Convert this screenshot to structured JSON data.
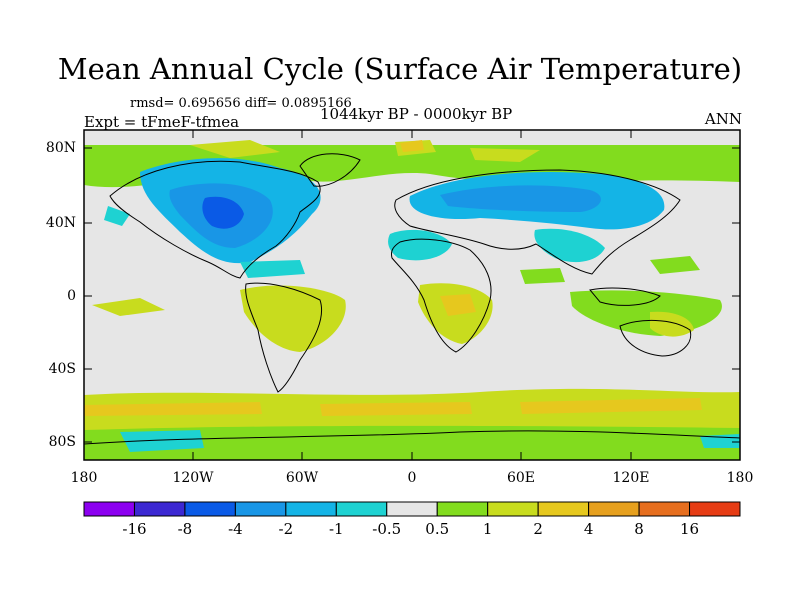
{
  "title": "Mean Annual Cycle (Surface Air Temperature)",
  "stats": "rmsd= 0.695656 diff= 0.0895166",
  "experiment": "Expt = tFmeF-tfmea",
  "period": "1044kyr BP - 0000kyr BP",
  "season": "ANN",
  "lat_ticks": [
    "80N",
    "40N",
    "0",
    "40S",
    "80S"
  ],
  "lon_ticks": [
    "180",
    "120W",
    "60W",
    "0",
    "60E",
    "120E",
    "180"
  ],
  "colorbar": {
    "labels": [
      "-16",
      "-8",
      "-4",
      "-2",
      "-1",
      "-0.5",
      "0.5",
      "1",
      "2",
      "4",
      "8",
      "16"
    ],
    "colors": [
      "#8c00f0",
      "#3c28d2",
      "#0a5ae6",
      "#1996e6",
      "#14b4e6",
      "#1ed2d2",
      "#e6e6e6",
      "#82dc1e",
      "#c8dc1e",
      "#e6c81e",
      "#e6a01e",
      "#e66e1e",
      "#e63c14"
    ]
  }
}
